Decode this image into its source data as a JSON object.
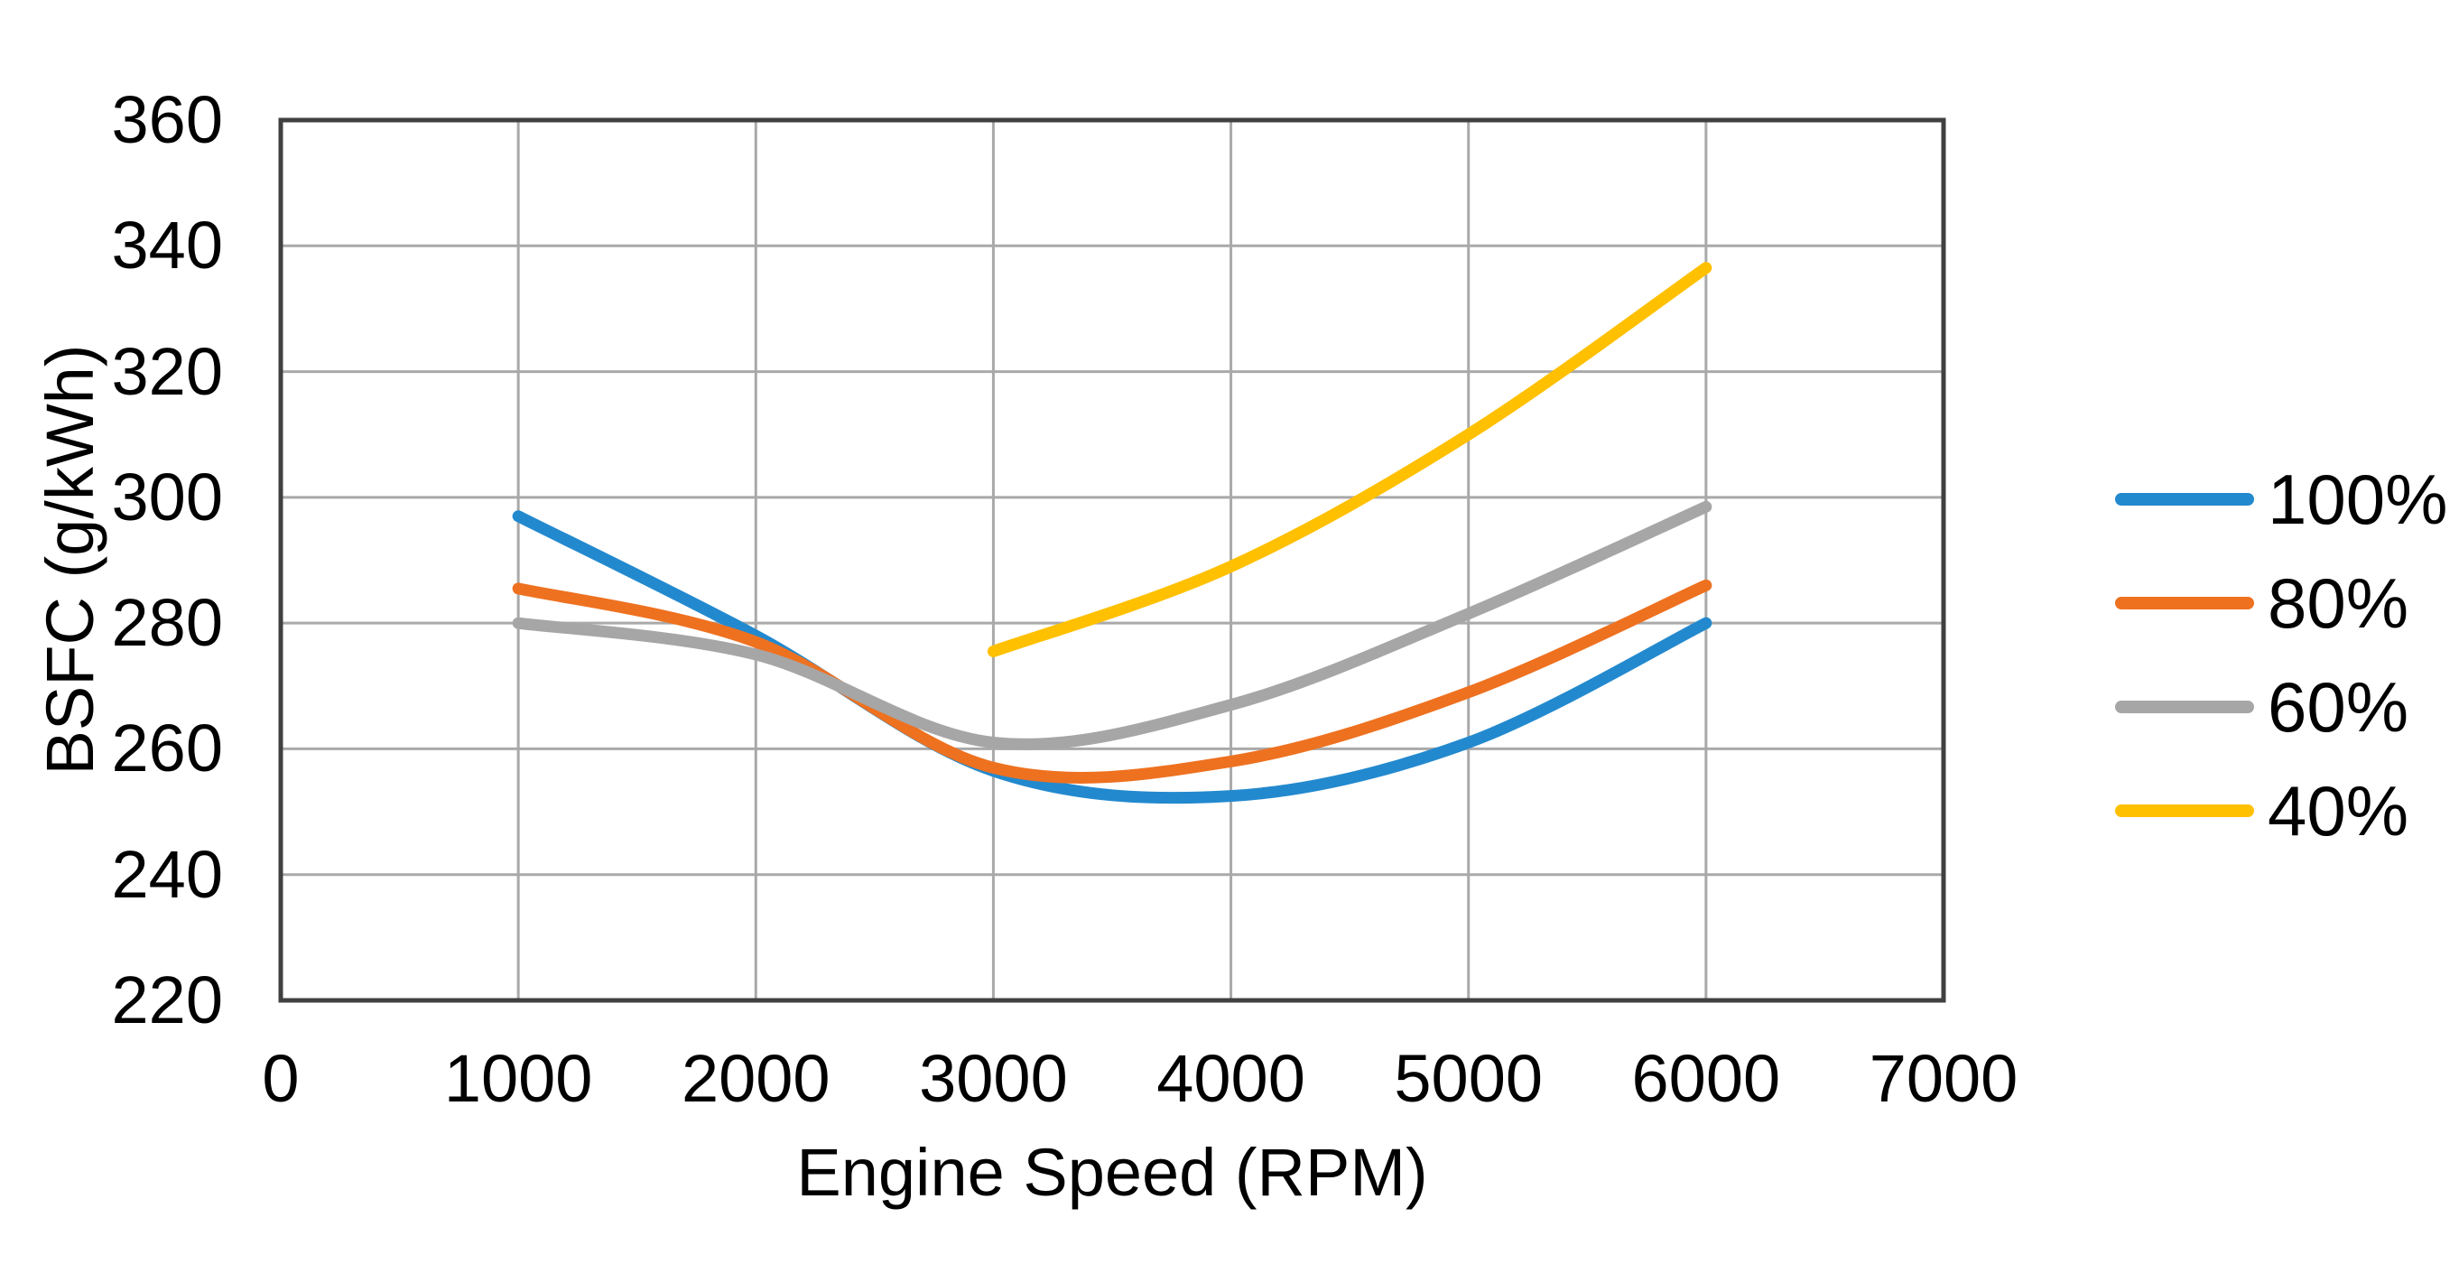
{
  "figure": {
    "background": "#ffffff",
    "text_color": "#000000",
    "gridline_color": "#a9a9a9",
    "plot_border_color": "#404040"
  },
  "chart_data": {
    "type": "line",
    "title": "",
    "xlabel": "Engine Speed (RPM)",
    "ylabel": "BSFC (g/kWh)",
    "xlim": [
      0,
      7000
    ],
    "ylim": [
      220,
      360
    ],
    "x_ticks": [
      0,
      1000,
      2000,
      3000,
      4000,
      5000,
      6000,
      7000
    ],
    "y_ticks": [
      220,
      240,
      260,
      280,
      300,
      320,
      340,
      360
    ],
    "grid": true,
    "smoothed_lines": true,
    "legend_position": "right",
    "series": [
      {
        "name": "100%",
        "color": "#2389ce",
        "x": [
          1000,
          2000,
          3000,
          4000,
          5000,
          6000
        ],
        "values": [
          297,
          278,
          256.5,
          252.5,
          261,
          280
        ]
      },
      {
        "name": "80%",
        "color": "#ee7120",
        "x": [
          1000,
          2000,
          3000,
          4000,
          5000,
          6000
        ],
        "values": [
          285.5,
          277,
          257,
          258,
          269,
          286
        ]
      },
      {
        "name": "60%",
        "color": "#a6a6a6",
        "x": [
          1000,
          2000,
          3000,
          4000,
          5000,
          6000
        ],
        "values": [
          280,
          275,
          261,
          267,
          281.5,
          298.5
        ]
      },
      {
        "name": "40%",
        "color": "#ffc000",
        "x": [
          3000,
          4000,
          5000,
          6000
        ],
        "values": [
          275.5,
          289,
          310,
          336.5
        ]
      }
    ]
  }
}
